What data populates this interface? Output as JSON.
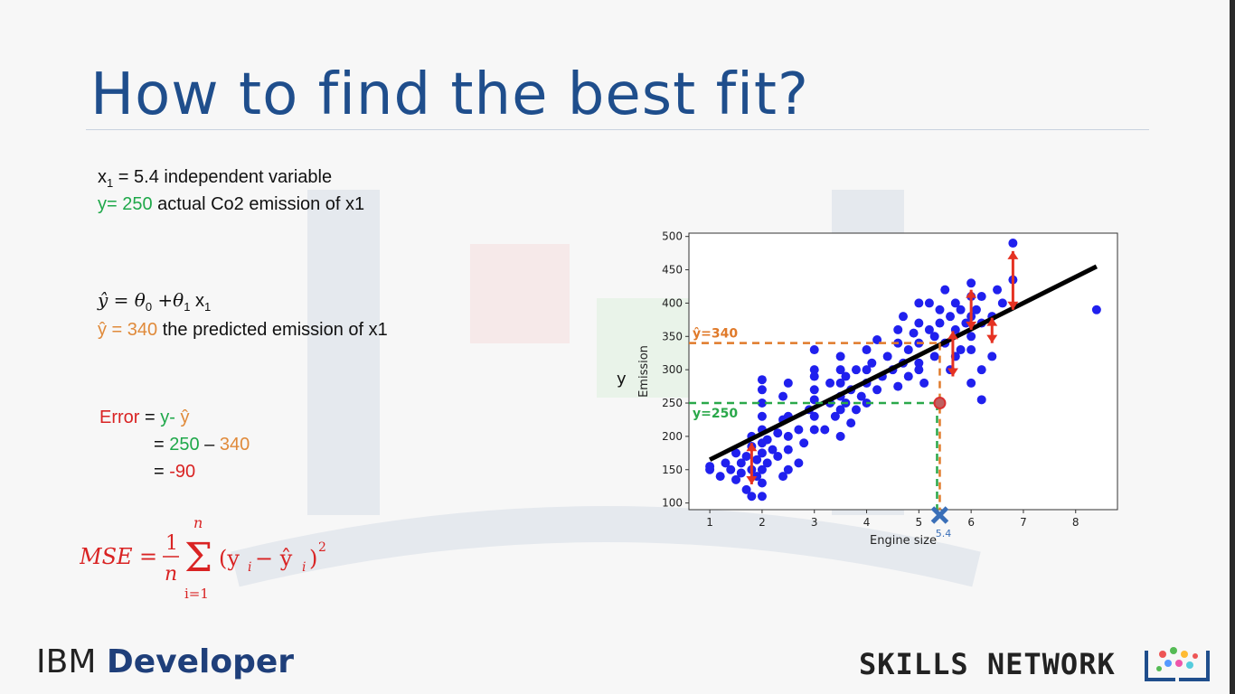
{
  "slide": {
    "title": "How to find the best fit?",
    "x1_var": "x",
    "x1_sub": "1",
    "x1_value": " = 5.4  independent variable",
    "y_label": "y= 250",
    "y_desc": " actual Co2 emission of x1",
    "formula_lhs": "ŷ = θ",
    "formula_sub0": "0",
    "formula_plus": " +θ",
    "formula_sub1": "1",
    "formula_x": " x",
    "formula_subx": "1",
    "yhat_label": "ŷ = 340",
    "yhat_desc": " the predicted emission of x1",
    "error_label": "Error",
    "error_eq": " = ",
    "error_y": "y-",
    "error_yhat": " ŷ",
    "line2_eq": "= ",
    "line2_a": "250",
    "line2_minus": " – ",
    "line2_b": "340",
    "line3_eq": "= ",
    "line3_val": "-90",
    "mse_lhs": "MSE",
    "mse_eq": "=",
    "mse_num": "1",
    "mse_den": "n",
    "mse_top": "n",
    "mse_bottom": "i=1",
    "mse_body": "(y",
    "mse_i1": "i",
    "mse_minus": " − ŷ",
    "mse_i2": "i",
    "mse_close": ")",
    "mse_pow": "2"
  },
  "footer": {
    "ibm": "IBM",
    "developer": "Developer",
    "skills": "SKILLS NETWORK"
  },
  "chart_data": {
    "type": "scatter",
    "xlabel": "Engine size",
    "ylabel": "Emission",
    "outer_label": "y",
    "xlim": [
      0.6,
      8.8
    ],
    "ylim": [
      90,
      505
    ],
    "xticks": [
      1,
      2,
      3,
      4,
      5,
      6,
      7,
      8
    ],
    "yticks": [
      100,
      150,
      200,
      250,
      300,
      350,
      400,
      450,
      500
    ],
    "fit_line": [
      [
        1.0,
        165
      ],
      [
        8.4,
        455
      ]
    ],
    "ref_actual": {
      "label": "y=250",
      "y": 250
    },
    "ref_pred": {
      "label": "ŷ=340",
      "y": 340
    },
    "x_marker": {
      "label": "5.4",
      "x": 5.4,
      "y": 90
    },
    "highlight": {
      "x": 5.4,
      "y": 250
    },
    "colors": {
      "points": "#2020ee",
      "line": "#000000",
      "green": "#2aa84a",
      "orange": "#e07a2a",
      "red": "#e53222"
    },
    "error_arrows": [
      {
        "x": 1.8,
        "y1": 190,
        "y2": 128
      },
      {
        "x": 5.65,
        "y1": 358,
        "y2": 290
      },
      {
        "x": 6.0,
        "y1": 420,
        "y2": 360
      },
      {
        "x": 6.4,
        "y1": 378,
        "y2": 340
      },
      {
        "x": 6.8,
        "y1": 390,
        "y2": 478
      }
    ],
    "points": [
      [
        1.0,
        150
      ],
      [
        1.0,
        155
      ],
      [
        1.2,
        140
      ],
      [
        1.3,
        160
      ],
      [
        1.4,
        150
      ],
      [
        1.5,
        135
      ],
      [
        1.5,
        175
      ],
      [
        1.6,
        160
      ],
      [
        1.6,
        145
      ],
      [
        1.7,
        120
      ],
      [
        1.7,
        170
      ],
      [
        1.8,
        110
      ],
      [
        1.8,
        150
      ],
      [
        1.8,
        185
      ],
      [
        1.8,
        200
      ],
      [
        1.9,
        140
      ],
      [
        1.9,
        165
      ],
      [
        2.0,
        110
      ],
      [
        2.0,
        130
      ],
      [
        2.0,
        150
      ],
      [
        2.0,
        175
      ],
      [
        2.0,
        190
      ],
      [
        2.0,
        210
      ],
      [
        2.0,
        230
      ],
      [
        2.0,
        250
      ],
      [
        2.0,
        270
      ],
      [
        2.0,
        285
      ],
      [
        2.1,
        160
      ],
      [
        2.1,
        195
      ],
      [
        2.2,
        180
      ],
      [
        2.3,
        170
      ],
      [
        2.3,
        205
      ],
      [
        2.4,
        140
      ],
      [
        2.4,
        225
      ],
      [
        2.4,
        260
      ],
      [
        2.5,
        150
      ],
      [
        2.5,
        180
      ],
      [
        2.5,
        200
      ],
      [
        2.5,
        230
      ],
      [
        2.5,
        280
      ],
      [
        2.7,
        160
      ],
      [
        2.7,
        210
      ],
      [
        2.8,
        190
      ],
      [
        2.9,
        240
      ],
      [
        3.0,
        210
      ],
      [
        3.0,
        230
      ],
      [
        3.0,
        255
      ],
      [
        3.0,
        270
      ],
      [
        3.0,
        290
      ],
      [
        3.0,
        300
      ],
      [
        3.0,
        330
      ],
      [
        3.2,
        210
      ],
      [
        3.3,
        250
      ],
      [
        3.3,
        280
      ],
      [
        3.4,
        230
      ],
      [
        3.5,
        200
      ],
      [
        3.5,
        240
      ],
      [
        3.5,
        260
      ],
      [
        3.5,
        280
      ],
      [
        3.5,
        300
      ],
      [
        3.5,
        320
      ],
      [
        3.6,
        250
      ],
      [
        3.6,
        290
      ],
      [
        3.7,
        220
      ],
      [
        3.7,
        270
      ],
      [
        3.8,
        240
      ],
      [
        3.8,
        300
      ],
      [
        3.9,
        260
      ],
      [
        4.0,
        280
      ],
      [
        4.0,
        300
      ],
      [
        4.0,
        330
      ],
      [
        4.0,
        250
      ],
      [
        4.1,
        310
      ],
      [
        4.2,
        270
      ],
      [
        4.2,
        345
      ],
      [
        4.3,
        290
      ],
      [
        4.4,
        320
      ],
      [
        4.5,
        300
      ],
      [
        4.6,
        275
      ],
      [
        4.6,
        340
      ],
      [
        4.6,
        360
      ],
      [
        4.7,
        310
      ],
      [
        4.7,
        380
      ],
      [
        4.8,
        330
      ],
      [
        4.8,
        290
      ],
      [
        4.9,
        355
      ],
      [
        5.0,
        300
      ],
      [
        5.0,
        340
      ],
      [
        5.0,
        370
      ],
      [
        5.0,
        400
      ],
      [
        5.0,
        310
      ],
      [
        5.1,
        280
      ],
      [
        5.2,
        360
      ],
      [
        5.2,
        400
      ],
      [
        5.3,
        320
      ],
      [
        5.3,
        350
      ],
      [
        5.4,
        250
      ],
      [
        5.4,
        370
      ],
      [
        5.4,
        390
      ],
      [
        5.5,
        340
      ],
      [
        5.5,
        420
      ],
      [
        5.6,
        300
      ],
      [
        5.6,
        380
      ],
      [
        5.7,
        360
      ],
      [
        5.7,
        320
      ],
      [
        5.7,
        400
      ],
      [
        5.8,
        330
      ],
      [
        5.8,
        390
      ],
      [
        5.9,
        370
      ],
      [
        6.0,
        280
      ],
      [
        6.0,
        330
      ],
      [
        6.0,
        350
      ],
      [
        6.0,
        380
      ],
      [
        6.0,
        410
      ],
      [
        6.0,
        430
      ],
      [
        6.1,
        390
      ],
      [
        6.2,
        255
      ],
      [
        6.2,
        300
      ],
      [
        6.2,
        370
      ],
      [
        6.2,
        410
      ],
      [
        6.4,
        320
      ],
      [
        6.4,
        380
      ],
      [
        6.5,
        420
      ],
      [
        6.6,
        400
      ],
      [
        6.8,
        435
      ],
      [
        6.8,
        490
      ],
      [
        8.4,
        390
      ]
    ]
  }
}
